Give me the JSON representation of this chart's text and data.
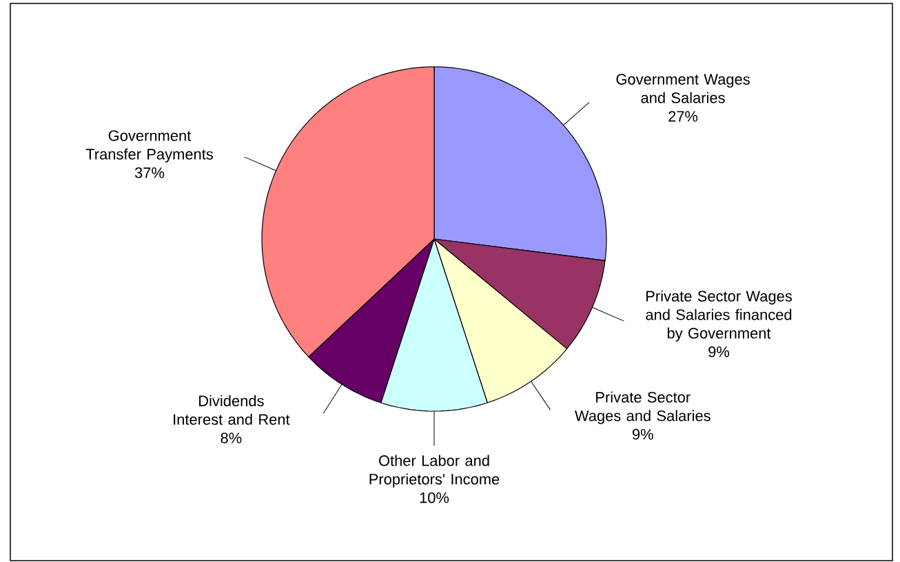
{
  "chart_data": {
    "type": "pie",
    "categories": [
      "Government Wages and Salaries",
      "Private Sector Wages and Salaries financed by Government",
      "Private Sector Wages and Salaries",
      "Other Labor and Proprietors' Income",
      "Dividends Interest and Rent",
      "Government Transfer Payments"
    ],
    "values": [
      27,
      9,
      9,
      10,
      8,
      37
    ],
    "value_labels": [
      "27%",
      "9%",
      "9%",
      "10%",
      "8%",
      "37%"
    ],
    "colors": [
      "#9999ff",
      "#993366",
      "#ffffcc",
      "#ccffff",
      "#660066",
      "#ff8080"
    ]
  }
}
